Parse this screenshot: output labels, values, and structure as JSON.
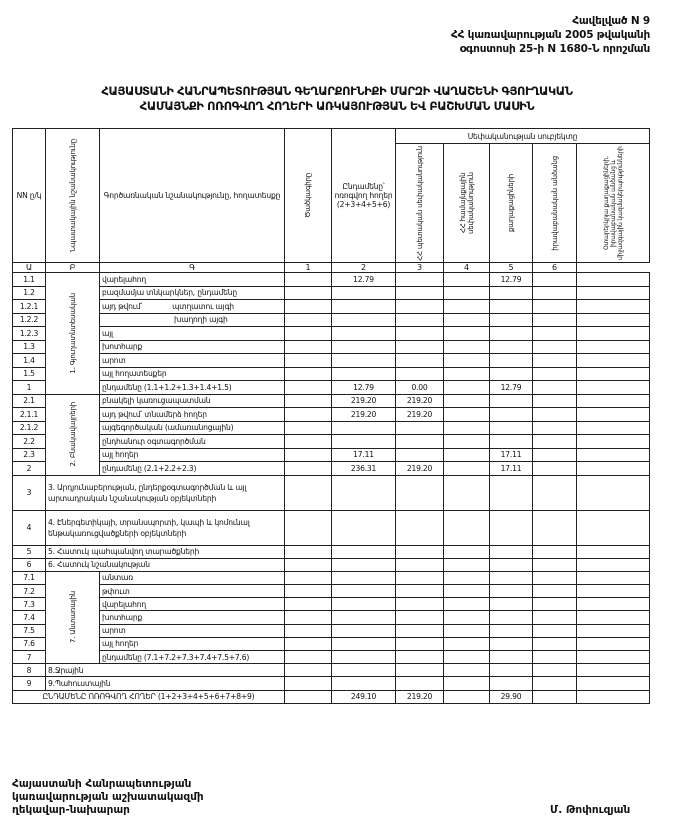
{
  "annex": {
    "line1": "Հավելված N 9",
    "line2": "ՀՀ կառավարության 2005 թվականի",
    "line3": "օգոստոսի 25-ի N 1680-Ն որոշման"
  },
  "title": {
    "line1": "ՀԱՅԱՍՏԱՆԻ ՀԱՆՐԱՊԵՏՈՒԹՅԱՆ ԳԵՂԱՐՔՈՒՆԻՔԻ ՄԱՐԶԻ ՎԱՂԱՇԵՆԻ ԳՅՈՒՂԱԿԱՆ",
    "line2": "ՀԱՄԱՅՆՔԻ ՈՌՈԳՎՈՂ ՀՈՂԵՐԻ ԱՌԿԱՅՈՒԹՅԱՆ ԵՎ ԲԱՇԽՄԱՆ ՄԱՍԻՆ"
  },
  "table": {
    "headers": {
      "nn": "NN ը/կ",
      "purpose": "Նպատակային նշանակությունը",
      "function": "Գործառնական նշանակությունը, հողատեսքը",
      "code": "Ծածկագիրը",
      "total": "Ընդամենը՝ ոռոգվող հողեր (2+3+4+5+6)",
      "ownership_group": "Սեփականության սուբյեկտը",
      "c2": "ՀՀ պետական սեփականություն",
      "c3": "ՀՀ համայնքային սեփականություն",
      "c4": "քաղաքացիների",
      "c5": "իրավաբանական անձանց",
      "c6": "Օտարերկրյա քաղաքացիների, իրավաբանական անձանց և միջազգային կազմակերպությունների"
    },
    "letters": [
      "Ա",
      "Բ",
      "Գ",
      "1",
      "2",
      "3",
      "4",
      "5",
      "6"
    ],
    "categories": {
      "c1": "1. Գյուղատնտեսական",
      "c2": "2. Բնակավայրերի",
      "c7": "7. Անտառային"
    },
    "rows": [
      {
        "code": "1.1",
        "name": "վարելահող",
        "values": [
          "",
          "12.79",
          "",
          "",
          "12.79",
          "",
          ""
        ]
      },
      {
        "code": "1.2",
        "name": "բազմամյա տնկարկներ, ընդամենը",
        "values": [
          "",
          "",
          "",
          "",
          "",
          "",
          ""
        ]
      },
      {
        "code": "1.2.1",
        "name": "այդ թվում՝",
        "subname": "պտղատու այգի",
        "values": [
          "",
          "",
          "",
          "",
          "",
          "",
          ""
        ]
      },
      {
        "code": "1.2.2",
        "name": "",
        "subname": "խաղողի այգի",
        "values": [
          "",
          "",
          "",
          "",
          "",
          "",
          ""
        ]
      },
      {
        "code": "1.2.3",
        "name": "այլ",
        "values": [
          "",
          "",
          "",
          "",
          "",
          "",
          ""
        ]
      },
      {
        "code": "1.3",
        "name": "խոտհարք",
        "values": [
          "",
          "",
          "",
          "",
          "",
          "",
          ""
        ]
      },
      {
        "code": "1.4",
        "name": "արոտ",
        "values": [
          "",
          "",
          "",
          "",
          "",
          "",
          ""
        ]
      },
      {
        "code": "1.5",
        "name": "այլ հողատեսքեր",
        "values": [
          "",
          "",
          "",
          "",
          "",
          "",
          ""
        ]
      },
      {
        "code": "1",
        "name": "ընդամենը (1.1+1.2+1.3+1.4+1.5)",
        "values": [
          "",
          "12.79",
          "0.00",
          "",
          "12.79",
          "",
          ""
        ]
      },
      {
        "code": "2.1",
        "name": "բնակելի կառուցապատման",
        "values": [
          "",
          "219.20",
          "219.20",
          "",
          "",
          "",
          ""
        ]
      },
      {
        "code": "2.1.1",
        "name": "այդ թվում՝ տնամերձ հողեր",
        "values": [
          "",
          "219.20",
          "219.20",
          "",
          "",
          "",
          ""
        ]
      },
      {
        "code": "2.1.2",
        "name": "այգեգործական (ամառանոցային)",
        "values": [
          "",
          "",
          "",
          "",
          "",
          "",
          ""
        ]
      },
      {
        "code": "2.2",
        "name": "ընդհանուր օգտագործման",
        "values": [
          "",
          "",
          "",
          "",
          "",
          "",
          ""
        ]
      },
      {
        "code": "2.3",
        "name": "այլ հողեր",
        "values": [
          "",
          "17.11",
          "",
          "",
          "17.11",
          "",
          ""
        ]
      },
      {
        "code": "2",
        "name": "ընդամենը (2.1+2.2+2.3)",
        "values": [
          "",
          "236.31",
          "219.20",
          "",
          "17.11",
          "",
          ""
        ]
      },
      {
        "code": "3",
        "name": "3. Արդյունաբերության, ընդերքօգտագործման և այլ արտադրական նշանակության օբյեկտների",
        "values": [
          "",
          "",
          "",
          "",
          "",
          "",
          ""
        ]
      },
      {
        "code": "4",
        "name": "4. Էներգետիկայի, տրանսպորտի, կապի և կոմունալ ենթակառուցվածքների օբյեկտների",
        "values": [
          "",
          "",
          "",
          "",
          "",
          "",
          ""
        ]
      },
      {
        "code": "5",
        "name": "5. Հատուկ պահպանվող տարածքների",
        "values": [
          "",
          "",
          "",
          "",
          "",
          "",
          ""
        ]
      },
      {
        "code": "6",
        "name": "6. Հատուկ նշանակության",
        "values": [
          "",
          "",
          "",
          "",
          "",
          "",
          ""
        ]
      },
      {
        "code": "7.1",
        "name": "անտառ",
        "values": [
          "",
          "",
          "",
          "",
          "",
          "",
          ""
        ]
      },
      {
        "code": "7.2",
        "name": "թփուտ",
        "values": [
          "",
          "",
          "",
          "",
          "",
          "",
          ""
        ]
      },
      {
        "code": "7.3",
        "name": "վարելահող",
        "values": [
          "",
          "",
          "",
          "",
          "",
          "",
          ""
        ]
      },
      {
        "code": "7.4",
        "name": "խոտհարք",
        "values": [
          "",
          "",
          "",
          "",
          "",
          "",
          ""
        ]
      },
      {
        "code": "7.5",
        "name": "արոտ",
        "values": [
          "",
          "",
          "",
          "",
          "",
          "",
          ""
        ]
      },
      {
        "code": "7.6",
        "name": "այլ հողեր",
        "values": [
          "",
          "",
          "",
          "",
          "",
          "",
          ""
        ]
      },
      {
        "code": "7",
        "name": "ընդամենը (7.1+7.2+7.3+7.4+7.5+7.6)",
        "values": [
          "",
          "",
          "",
          "",
          "",
          "",
          ""
        ]
      },
      {
        "code": "8",
        "name": "8.Ջրային",
        "values": [
          "",
          "",
          "",
          "",
          "",
          "",
          ""
        ]
      },
      {
        "code": "9",
        "name": "9.Պահուստային",
        "values": [
          "",
          "",
          "",
          "",
          "",
          "",
          ""
        ]
      }
    ],
    "total_row": {
      "name": "ԸՆԴԱՄԵՆԸ ՈՌՈԳՎՈՂ ՀՈՂԵՐ (1+2+3+4+5+6+7+8+9)",
      "values": [
        "",
        "249.10",
        "219.20",
        "",
        "29.90",
        "",
        ""
      ]
    }
  },
  "footer": {
    "left_line1": "Հայաստանի Հանրապետության",
    "left_line2": "կառավարության աշխատակազմի",
    "left_line3": "ղեկավար-նախարար",
    "signatory": "Մ. Թոփուզյան"
  }
}
